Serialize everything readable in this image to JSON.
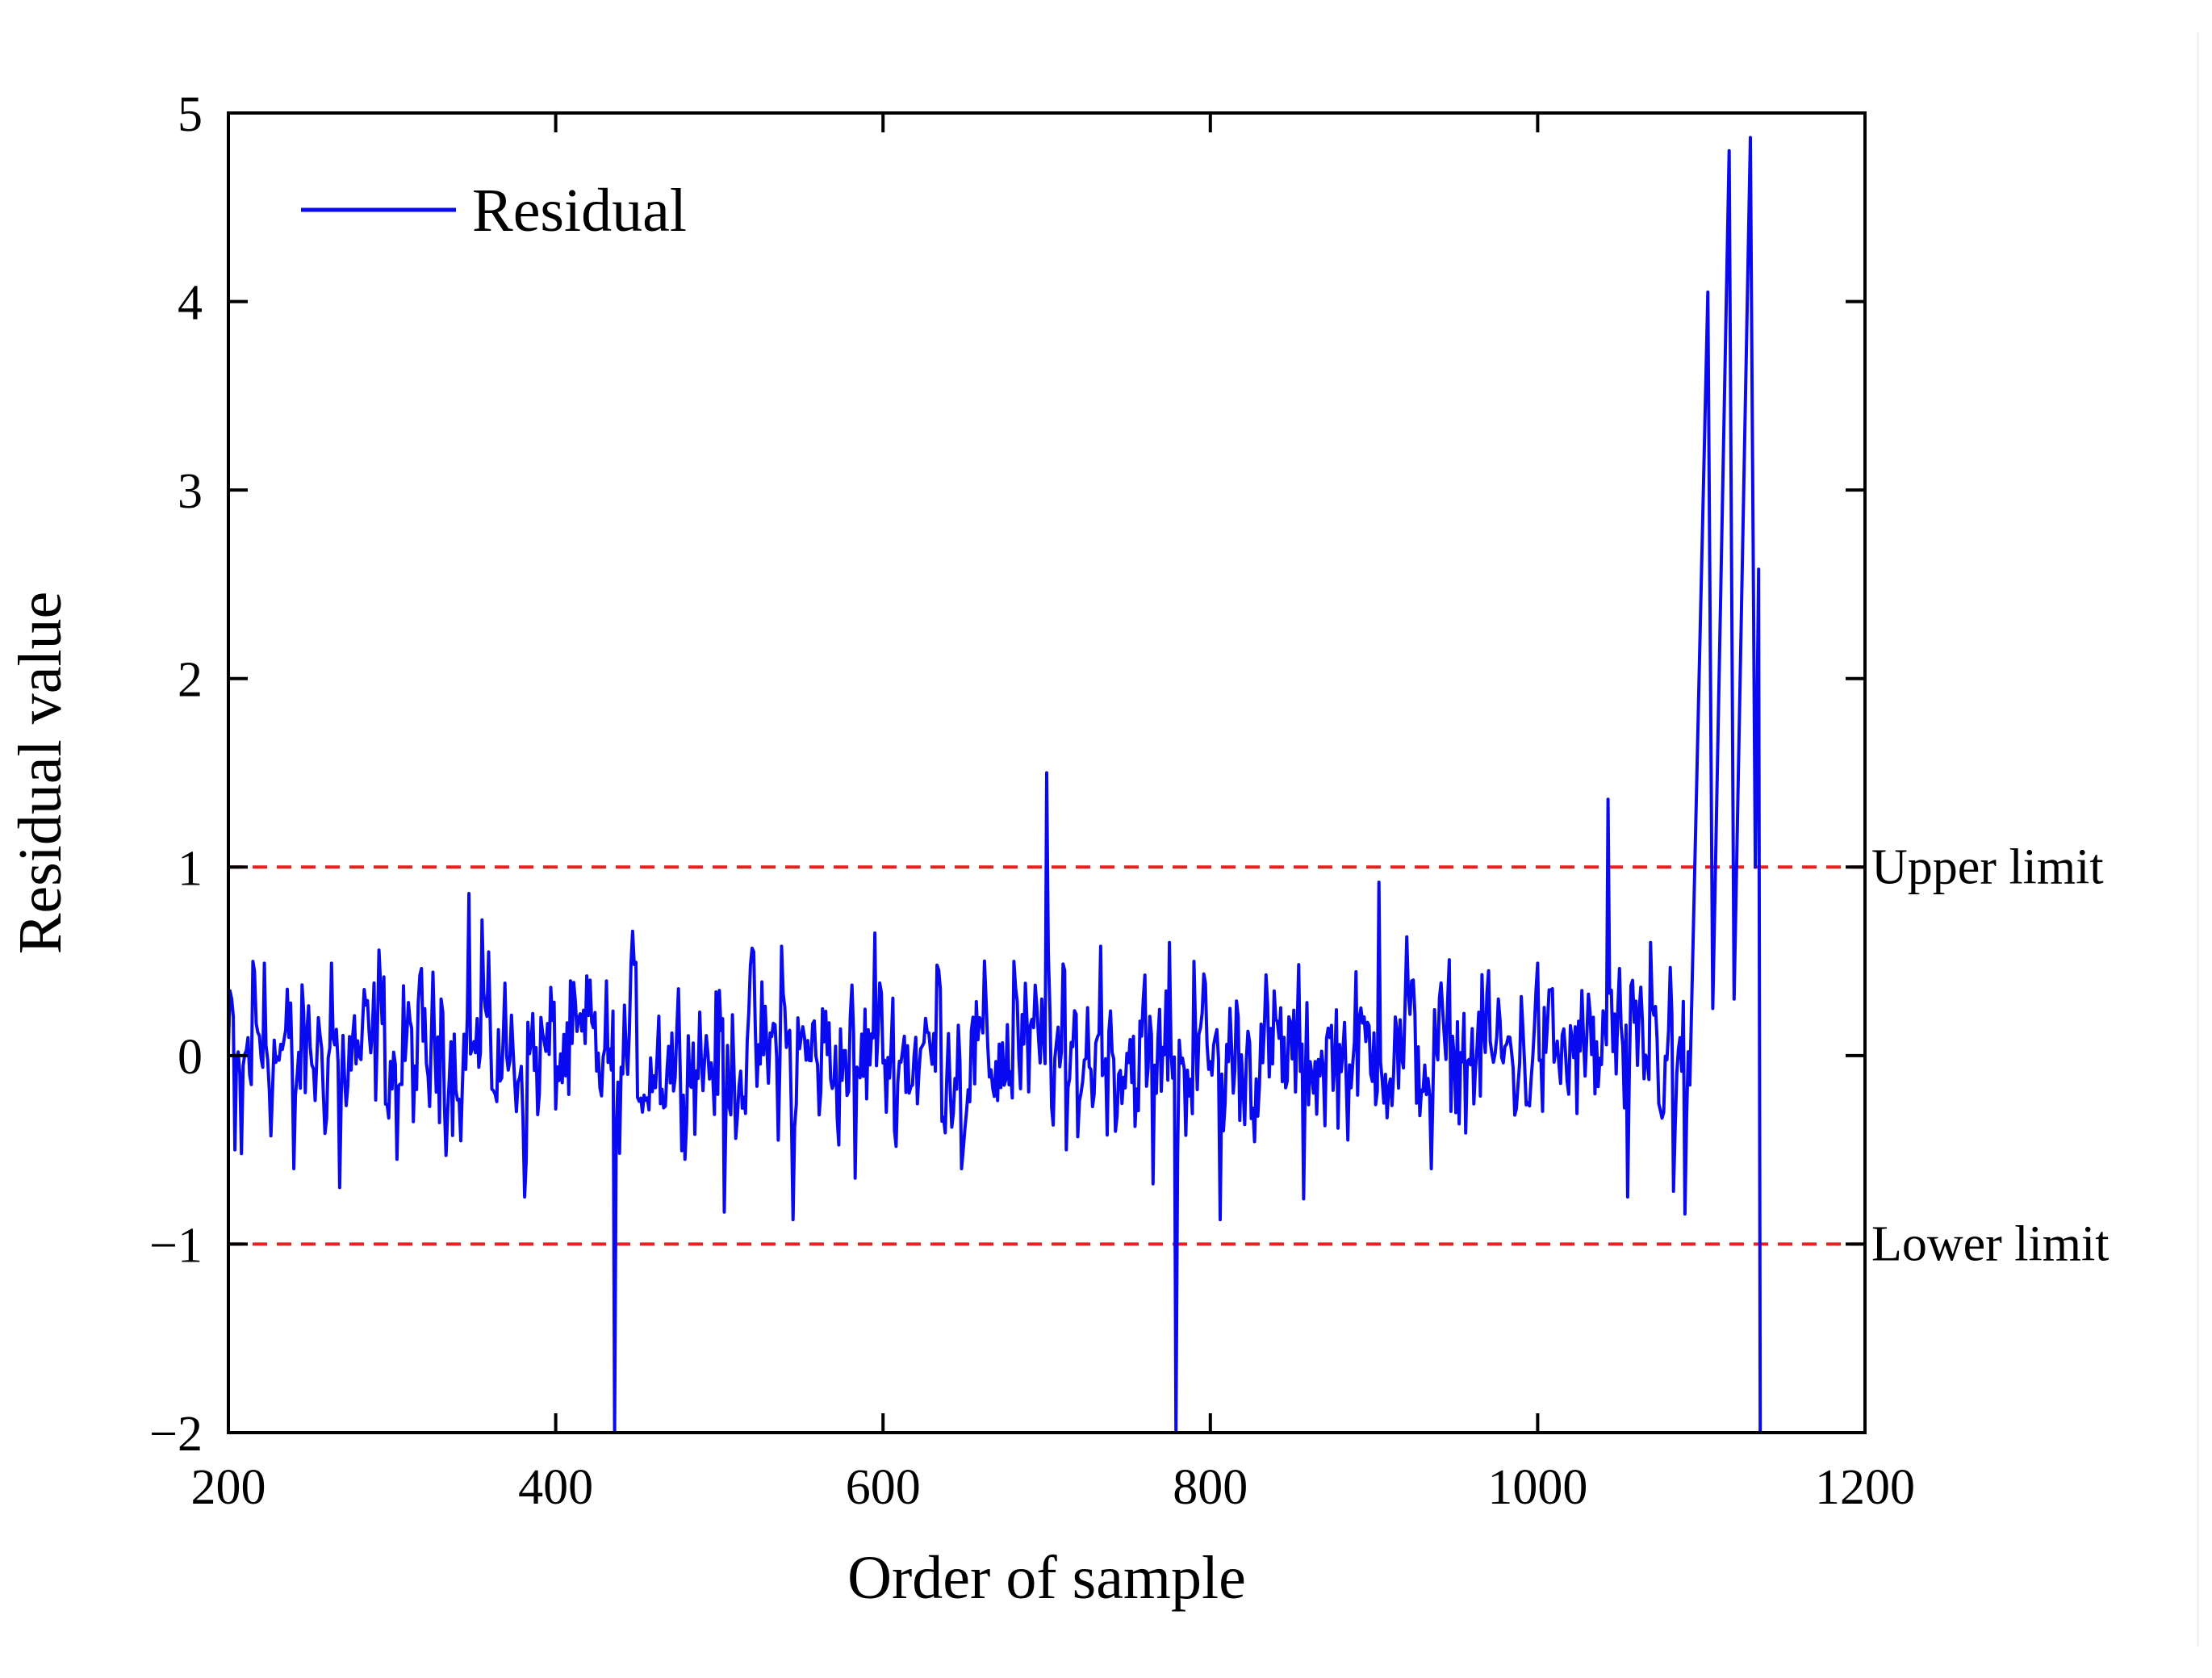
{
  "chart_data": {
    "type": "line",
    "xlabel": "Order of sample",
    "ylabel": "Residual value",
    "xlim": [
      200,
      1200
    ],
    "ylim": [
      -2,
      5
    ],
    "xticks": [
      200,
      400,
      600,
      800,
      1000,
      1200
    ],
    "yticks": [
      -2,
      -1,
      0,
      1,
      2,
      3,
      4,
      5
    ],
    "xtick_labels": [
      "200",
      "400",
      "600",
      "800",
      "1000",
      "1200"
    ],
    "ytick_labels": [
      "−2",
      "−1",
      "0",
      "1",
      "2",
      "3",
      "4",
      "5"
    ],
    "legend": {
      "position": "top-left",
      "entries": [
        "Residual"
      ]
    },
    "colors": {
      "residual": "#0a0af0",
      "limits": "#e8201e",
      "axes": "#000000"
    },
    "noise_amplitude": 0.3,
    "thresholds": [
      {
        "name": "Upper limit",
        "value": 1
      },
      {
        "name": "Lower limit",
        "value": -1
      }
    ],
    "series": [
      {
        "name": "Residual",
        "x_start": 200,
        "x_end": 1093,
        "baseline_points": [
          [
            202,
            0.3
          ],
          [
            204,
            -0.5
          ],
          [
            208,
            -0.52
          ],
          [
            215,
            0.5
          ],
          [
            222,
            0.49
          ],
          [
            240,
            -0.6
          ],
          [
            263,
            0.49
          ],
          [
            268,
            -0.7
          ],
          [
            292,
            0.56
          ],
          [
            303,
            -0.55
          ],
          [
            330,
            0.3
          ],
          [
            347,
            0.86
          ],
          [
            355,
            0.72
          ],
          [
            381,
            -0.75
          ],
          [
            421,
            0.4
          ],
          [
            436,
            0.52
          ],
          [
            447,
            0.66
          ],
          [
            453,
            -0.3
          ],
          [
            503,
            -0.83
          ],
          [
            520,
            0.57
          ],
          [
            538,
            0.58
          ],
          [
            545,
            -0.87
          ],
          [
            583,
            -0.65
          ],
          [
            595,
            0.65
          ],
          [
            633,
            0.48
          ],
          [
            648,
            -0.6
          ],
          [
            680,
            0.5
          ],
          [
            700,
            1.5
          ],
          [
            712,
            -0.5
          ],
          [
            733,
            0.58
          ],
          [
            765,
            -0.68
          ],
          [
            775,
            0.6
          ],
          [
            790,
            0.5
          ],
          [
            806,
            -0.87
          ],
          [
            857,
            -0.76
          ],
          [
            903,
            0.92
          ],
          [
            920,
            0.63
          ],
          [
            935,
            -0.6
          ],
          [
            970,
            0.45
          ],
          [
            1000,
            0.49
          ],
          [
            1043,
            1.36
          ],
          [
            1055,
            -0.75
          ],
          [
            1069,
            0.6
          ],
          [
            1083,
            -0.72
          ],
          [
            1090,
            -0.84
          ]
        ],
        "spikes": [
          {
            "x": 436,
            "y": -2.0
          },
          {
            "x": 779,
            "y": -2.0
          },
          {
            "x": 700,
            "y": 1.5
          },
          {
            "x": 1043,
            "y": 1.36
          }
        ],
        "tail_points": [
          [
            1090,
            -0.84
          ],
          [
            1093,
            -0.15
          ],
          [
            1104,
            4.05
          ],
          [
            1107,
            0.25
          ],
          [
            1117,
            4.8
          ],
          [
            1120,
            0.3
          ],
          [
            1130,
            4.87
          ],
          [
            1133,
            1.0
          ],
          [
            1135,
            2.58
          ],
          [
            1136,
            -2.0
          ]
        ]
      }
    ]
  }
}
